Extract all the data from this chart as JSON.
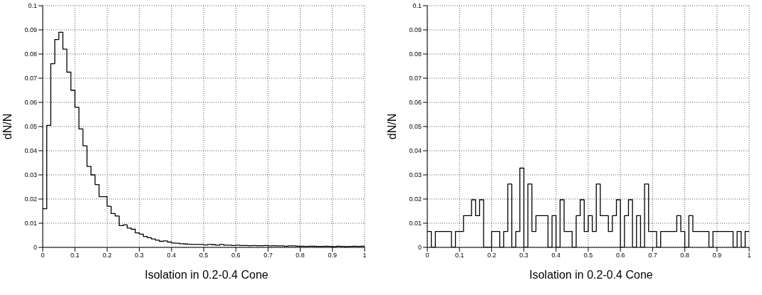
{
  "chart_data": [
    {
      "type": "histogram",
      "xlabel": "Isolation in 0.2-0.4 Cone",
      "ylabel": "dN/N",
      "color": "#000000",
      "grid": true,
      "xlim": [
        0,
        1
      ],
      "ylim": [
        0,
        0.1
      ],
      "xticks": [
        0,
        0.1,
        0.2,
        0.3,
        0.4,
        0.5,
        0.6,
        0.7,
        0.8,
        0.9,
        1
      ],
      "yticks": [
        0,
        0.01,
        0.02,
        0.03,
        0.04,
        0.05,
        0.06,
        0.07,
        0.08,
        0.09,
        0.1
      ],
      "bins": [
        0,
        0.0125,
        0.025,
        0.0375,
        0.05,
        0.0625,
        0.075,
        0.0875,
        0.1,
        0.1125,
        0.125,
        0.1375,
        0.15,
        0.1625,
        0.175,
        0.1875,
        0.2,
        0.2125,
        0.225,
        0.2375,
        0.25,
        0.2625,
        0.275,
        0.2875,
        0.3,
        0.3125,
        0.325,
        0.3375,
        0.35,
        0.3625,
        0.375,
        0.3875,
        0.4,
        0.4125,
        0.425,
        0.4375,
        0.45,
        0.4625,
        0.475,
        0.4875,
        0.5,
        0.5125,
        0.525,
        0.5375,
        0.55,
        0.5625,
        0.575,
        0.5875,
        0.6,
        0.6125,
        0.625,
        0.6375,
        0.65,
        0.6625,
        0.675,
        0.6875,
        0.7,
        0.7125,
        0.725,
        0.7375,
        0.75,
        0.7625,
        0.775,
        0.7875,
        0.8,
        0.8125,
        0.825,
        0.8375,
        0.85,
        0.8625,
        0.875,
        0.8875,
        0.9,
        0.9125,
        0.925,
        0.9375,
        0.95,
        0.9625,
        0.975,
        0.9875,
        1
      ],
      "values": [
        0.016,
        0.0505,
        0.076,
        0.086,
        0.089,
        0.082,
        0.0725,
        0.065,
        0.058,
        0.049,
        0.042,
        0.0335,
        0.03,
        0.026,
        0.021,
        0.021,
        0.017,
        0.014,
        0.013,
        0.009,
        0.0093,
        0.008,
        0.0075,
        0.006,
        0.0055,
        0.0045,
        0.004,
        0.0035,
        0.003,
        0.0025,
        0.0027,
        0.0022,
        0.0018,
        0.0017,
        0.0015,
        0.0014,
        0.0013,
        0.0012,
        0.0012,
        0.0012,
        0.001,
        0.0012,
        0.0011,
        0.0009,
        0.0012,
        0.0009,
        0.0009,
        0.0008,
        0.0009,
        0.0008,
        0.0008,
        0.0007,
        0.0008,
        0.0007,
        0.0007,
        0.0008,
        0.0006,
        0.0007,
        0.0006,
        0.0006,
        0.0005,
        0.0006,
        0.0006,
        0.0005,
        0.0005,
        0.0004,
        0.0005,
        0.0005,
        0.0004,
        0.0004,
        0.0005,
        0.0004,
        0.0003,
        0.0005,
        0.0004,
        0.0003,
        0.0004,
        0.0005,
        0.0004,
        0.0005
      ]
    },
    {
      "type": "histogram",
      "xlabel": "Isolation in 0.2-0.4 Cone",
      "ylabel": "dN/N",
      "color": "#000000",
      "grid": true,
      "xlim": [
        0,
        1
      ],
      "ylim": [
        0,
        0.1
      ],
      "xticks": [
        0,
        0.1,
        0.2,
        0.3,
        0.4,
        0.5,
        0.6,
        0.7,
        0.8,
        0.9,
        1
      ],
      "yticks": [
        0,
        0.01,
        0.02,
        0.03,
        0.04,
        0.05,
        0.06,
        0.07,
        0.08,
        0.09,
        0.1
      ],
      "bins": [
        0,
        0.0125,
        0.025,
        0.0375,
        0.05,
        0.0625,
        0.075,
        0.0875,
        0.1,
        0.1125,
        0.125,
        0.1375,
        0.15,
        0.1625,
        0.175,
        0.1875,
        0.2,
        0.2125,
        0.225,
        0.2375,
        0.25,
        0.2625,
        0.275,
        0.2875,
        0.3,
        0.3125,
        0.325,
        0.3375,
        0.35,
        0.3625,
        0.375,
        0.3875,
        0.4,
        0.4125,
        0.425,
        0.4375,
        0.45,
        0.4625,
        0.475,
        0.4875,
        0.5,
        0.5125,
        0.525,
        0.5375,
        0.55,
        0.5625,
        0.575,
        0.5875,
        0.6,
        0.6125,
        0.625,
        0.6375,
        0.65,
        0.6625,
        0.675,
        0.6875,
        0.7,
        0.7125,
        0.725,
        0.7375,
        0.75,
        0.7625,
        0.775,
        0.7875,
        0.8,
        0.8125,
        0.825,
        0.8375,
        0.85,
        0.8625,
        0.875,
        0.8875,
        0.9,
        0.9125,
        0.925,
        0.9375,
        0.95,
        0.9625,
        0.975,
        0.9875,
        1
      ],
      "values": [
        0.0066,
        0,
        0.0066,
        0.0066,
        0.0066,
        0.0066,
        0,
        0.0066,
        0.0066,
        0.0131,
        0.0131,
        0.0197,
        0.0131,
        0.0197,
        0,
        0,
        0.0066,
        0.0066,
        0,
        0.0066,
        0.0262,
        0,
        0.0066,
        0.0328,
        0,
        0.0262,
        0.0066,
        0.0131,
        0.0131,
        0.0131,
        0,
        0.0131,
        0,
        0.0197,
        0.0066,
        0.0066,
        0,
        0.0131,
        0.0197,
        0.0066,
        0.0131,
        0.0066,
        0.0262,
        0.0131,
        0.0131,
        0.0066,
        0.0131,
        0.0197,
        0,
        0.0131,
        0.0197,
        0,
        0.0131,
        0,
        0.0262,
        0.0066,
        0.0066,
        0,
        0.0066,
        0.0066,
        0.0066,
        0.0066,
        0.0131,
        0.0066,
        0,
        0.0131,
        0.0066,
        0.0066,
        0.0066,
        0.0066,
        0,
        0.0066,
        0.0066,
        0.0066,
        0.0066,
        0.0066,
        0,
        0.0066,
        0,
        0.0066
      ]
    }
  ]
}
